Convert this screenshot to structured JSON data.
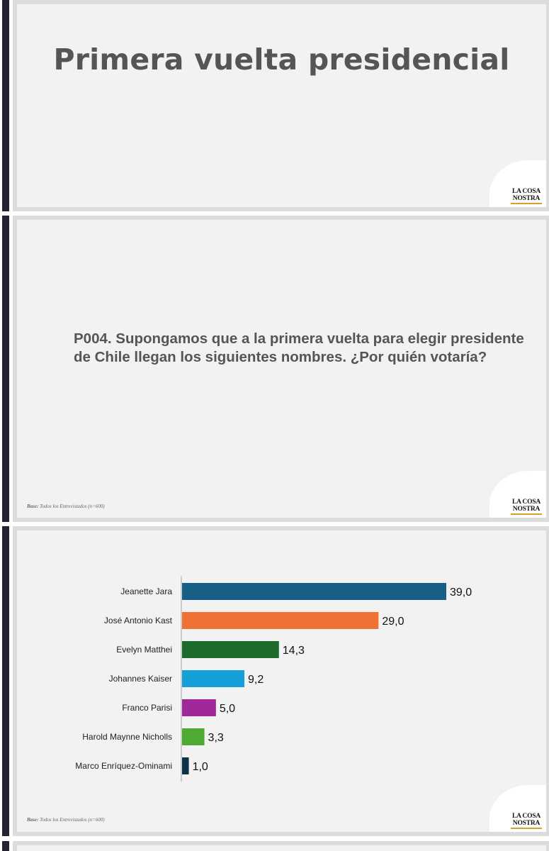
{
  "slide1": {
    "title": "Primera vuelta presidencial"
  },
  "slide2": {
    "question": "P004. Supongamos que a la primera vuelta para elegir presidente de Chile llegan los siguientes nombres. ¿Por quién votaría?"
  },
  "base_note": {
    "label": "Base:",
    "text": "Todos los Entrevistados (n=600)"
  },
  "logo": {
    "line1": "LA COSA",
    "line2": "NOSTRA"
  },
  "chart_data": {
    "type": "bar",
    "orientation": "horizontal",
    "categories": [
      "Jeanette Jara",
      "José Antonio Kast",
      "Evelyn Matthei",
      "Johannes Kaiser",
      "Franco Parisi",
      "Harold Maynne Nicholls",
      "Marco Enríquez-Ominami"
    ],
    "values": [
      39.0,
      29.0,
      14.3,
      9.2,
      5.0,
      3.3,
      1.0
    ],
    "value_labels": [
      "39,0",
      "29,0",
      "14,3",
      "9,2",
      "5,0",
      "3,3",
      "1,0"
    ],
    "colors": [
      "#185f85",
      "#ed7234",
      "#1d6b2b",
      "#15a0d8",
      "#a0289a",
      "#4faa33",
      "#0f3147"
    ],
    "xlim": [
      0,
      39.0
    ],
    "title": "",
    "xlabel": "",
    "ylabel": "",
    "grid": false,
    "legend": "none"
  }
}
